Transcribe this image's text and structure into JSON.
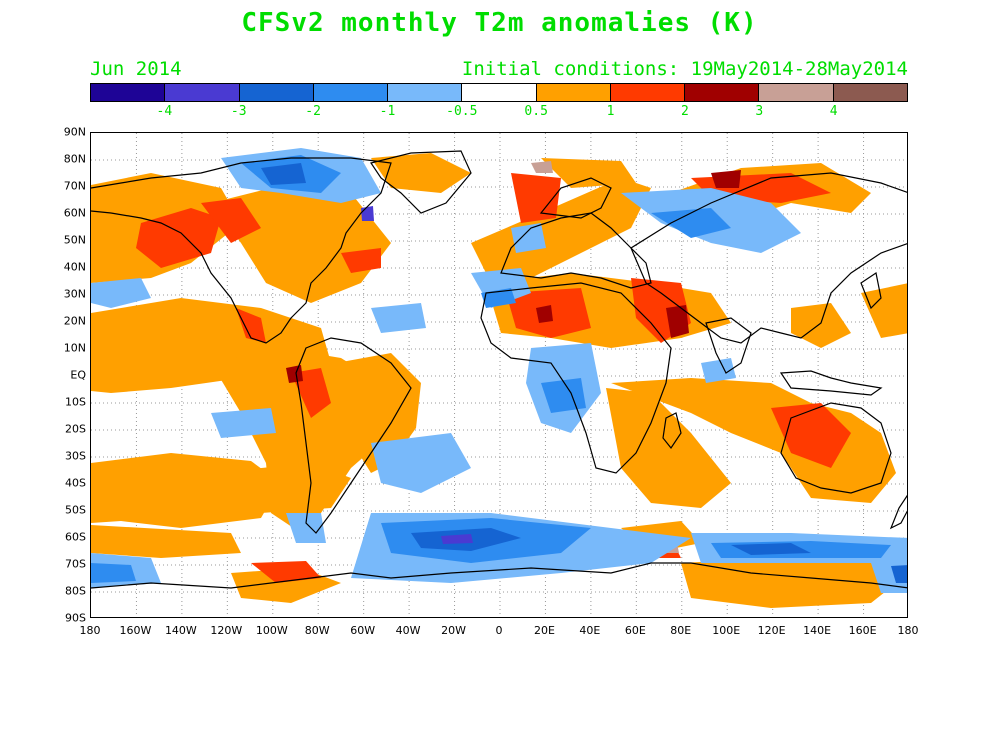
{
  "title": "CFSv2 monthly T2m anomalies (K)",
  "valid_month": "Jun 2014",
  "initial_conditions": "Initial conditions: 19May2014-28May2014",
  "colorbar": {
    "colors": [
      "#1e0496",
      "#4a3ad2",
      "#1564d2",
      "#2e8cf0",
      "#78b9fa",
      "#ffffff",
      "#ffa000",
      "#ff3a00",
      "#a00000",
      "#c8a096",
      "#8c5a50"
    ],
    "labels": [
      "-4",
      "-3",
      "-2",
      "-1",
      "-0.5",
      "0.5",
      "1",
      "2",
      "3",
      "4"
    ]
  },
  "y_axis_labels": [
    "90N",
    "80N",
    "70N",
    "60N",
    "50N",
    "40N",
    "30N",
    "20N",
    "10N",
    "EQ",
    "10S",
    "20S",
    "30S",
    "40S",
    "50S",
    "60S",
    "70S",
    "80S",
    "90S"
  ],
  "x_axis_labels": [
    "180",
    "160W",
    "140W",
    "120W",
    "100W",
    "80W",
    "60W",
    "40W",
    "20W",
    "0",
    "20E",
    "40E",
    "60E",
    "80E",
    "100E",
    "120E",
    "140E",
    "160E",
    "180"
  ]
}
